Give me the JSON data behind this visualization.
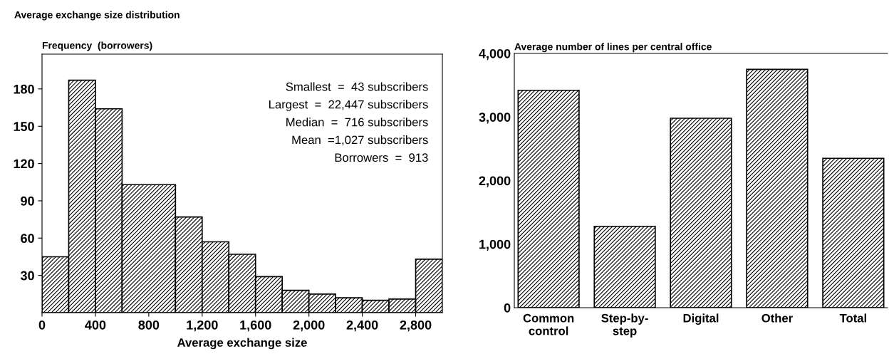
{
  "chart_data": [
    {
      "type": "histogram",
      "title": "Average exchange size distribution",
      "ylabel": "Frequency  (borrowers)",
      "xlabel": "Average exchange size",
      "bins": [
        0,
        200,
        400,
        600,
        1000,
        1200,
        1400,
        1600,
        1800,
        2000,
        2200,
        2400,
        2600,
        2800,
        3000
      ],
      "values": [
        45,
        187,
        164,
        103,
        77,
        57,
        47,
        29,
        18,
        15,
        12,
        10,
        11,
        43
      ],
      "color": "#000000",
      "xlim": [
        0,
        3000
      ],
      "ylim": [
        0,
        208
      ],
      "xticks": [
        0,
        {
          "value": 400,
          "label": "400"
        },
        {
          "value": 800,
          "label": "800"
        },
        {
          "value": 1200,
          "label": "1,200"
        },
        {
          "value": 1600,
          "label": "1,600"
        },
        {
          "value": 2000,
          "label": "2,000"
        },
        {
          "value": 2400,
          "label": "2,400"
        },
        {
          "value": 2800,
          "label": "2,800"
        }
      ],
      "yticks": [
        30,
        60,
        90,
        120,
        150,
        180
      ],
      "annotations": [
        "Smallest  =  43 subscribers",
        "Largest  =  22,447 subscribers",
        "Median  =  716 subscribers",
        "Mean  =1,027 subscribers",
        "Borrowers  =  913"
      ],
      "grid": false,
      "legend": false
    },
    {
      "type": "bar",
      "title": "Average number of lines per central office",
      "categories": [
        "Common\ncontrol",
        "Step-by-\nstep",
        "Digital",
        "Other",
        "Total"
      ],
      "values": [
        3420,
        1280,
        2980,
        3750,
        2350
      ],
      "color": "#000000",
      "ylim": [
        0,
        4000
      ],
      "yticks": [
        0,
        {
          "value": 1000,
          "label": "1,000"
        },
        {
          "value": 2000,
          "label": "2,000"
        },
        {
          "value": 3000,
          "label": "3,000"
        },
        {
          "value": 4000,
          "label": "4,000"
        }
      ],
      "grid": false,
      "legend": false
    }
  ]
}
